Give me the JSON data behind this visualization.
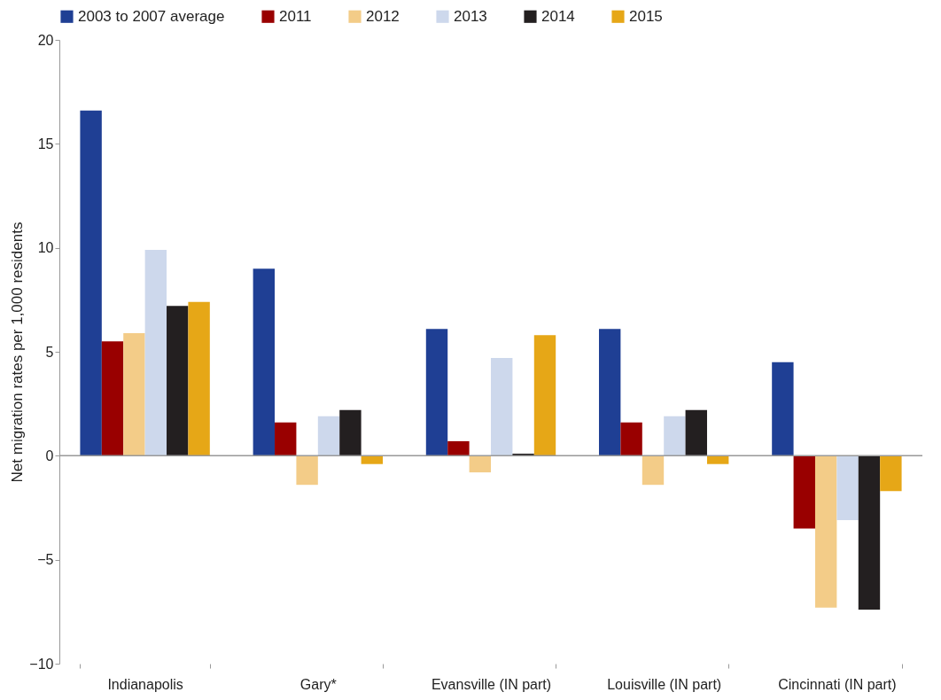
{
  "chart_data": {
    "type": "bar",
    "ylabel": "Net migration rates per 1,000 residents",
    "categories": [
      "Indianapolis",
      "Gary*",
      "Evansville (IN part)",
      "Louisville (IN part)",
      "Cincinnati (IN part)"
    ],
    "series": [
      {
        "name": "2003 to 2007 average",
        "color": "#1f3f94",
        "values": [
          16.6,
          9.0,
          6.1,
          6.1,
          4.5
        ]
      },
      {
        "name": "2011",
        "color": "#990000",
        "values": [
          5.5,
          1.6,
          0.7,
          1.6,
          -3.5
        ]
      },
      {
        "name": "2012",
        "color": "#f3cc88",
        "values": [
          5.9,
          -1.4,
          -0.8,
          -1.4,
          -7.3
        ]
      },
      {
        "name": "2013",
        "color": "#cdd8ec",
        "values": [
          9.9,
          1.9,
          4.7,
          1.9,
          -3.1
        ]
      },
      {
        "name": "2014",
        "color": "#231f20",
        "values": [
          7.2,
          2.2,
          0.1,
          2.2,
          -7.4
        ]
      },
      {
        "name": "2015",
        "color": "#e6a717",
        "values": [
          7.4,
          -0.4,
          5.8,
          -0.4,
          -1.7
        ]
      }
    ],
    "ylim": [
      -10,
      20
    ],
    "yticks": [
      -10,
      -5,
      0,
      5,
      10,
      15,
      20
    ],
    "ref_lines": [
      {
        "axis": "y",
        "value": 0,
        "color": "#999999"
      }
    ],
    "grid": false,
    "legend": "top"
  }
}
